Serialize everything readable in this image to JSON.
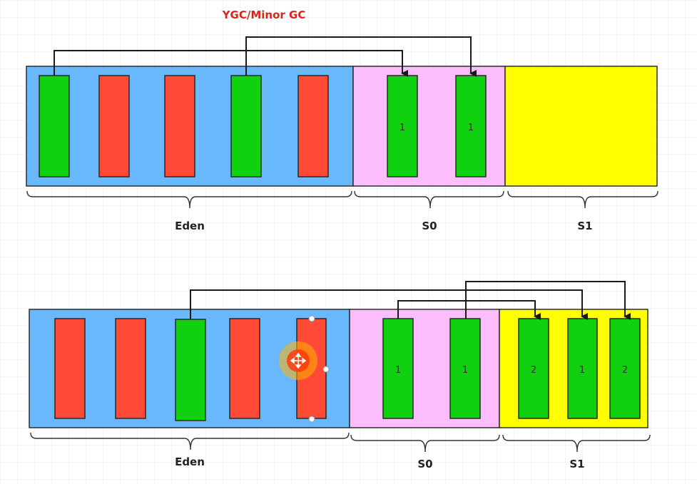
{
  "title": "YGC/Minor GC",
  "colors": {
    "eden": "#6ab8fc",
    "s0": "#fbbdfb",
    "s1": "#ffff00",
    "live": "#0fd10f",
    "dead": "#ff4b35",
    "cursor_outer": "#ffb400",
    "cursor_inner": "#ff3b10"
  },
  "diagrams": [
    {
      "labels": {
        "eden": "Eden",
        "s0": "S0",
        "s1": "S1"
      },
      "eden_objects": [
        "live",
        "dead",
        "dead",
        "live",
        "dead"
      ],
      "s0_objects": [
        {
          "color": "live",
          "age": "1"
        },
        {
          "color": "live",
          "age": "1"
        }
      ],
      "s1_objects": []
    },
    {
      "labels": {
        "eden": "Eden",
        "s0": "S0",
        "s1": "S1"
      },
      "eden_objects": [
        "dead",
        "dead",
        "live",
        "dead",
        "dead"
      ],
      "s0_objects": [
        {
          "color": "live",
          "age": "1"
        },
        {
          "color": "live",
          "age": "1"
        }
      ],
      "s1_objects": [
        {
          "color": "live",
          "age": "2"
        },
        {
          "color": "live",
          "age": "1"
        },
        {
          "color": "live",
          "age": "2"
        }
      ]
    }
  ],
  "cursor_icon": "move-cursor-icon"
}
